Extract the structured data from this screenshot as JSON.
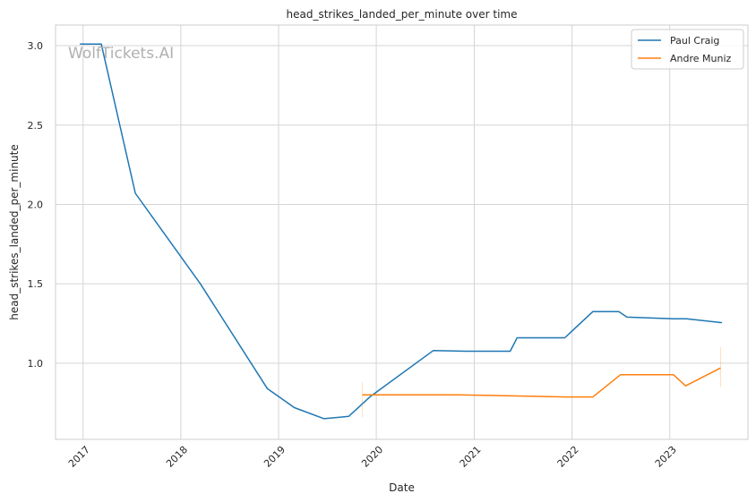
{
  "chart_data": {
    "type": "line",
    "title": "head_strikes_landed_per_minute over time",
    "xlabel": "Date",
    "ylabel": "head_strikes_landed_per_minute",
    "watermark": "WolfTickets.AI",
    "xlim": [
      "2016-09-20",
      "2023-10-20"
    ],
    "ylim": [
      0.52,
      3.13
    ],
    "x_ticks": [
      "2017",
      "2018",
      "2019",
      "2020",
      "2021",
      "2022",
      "2023"
    ],
    "y_ticks": [
      "1.0",
      "1.5",
      "2.0",
      "2.5",
      "3.0"
    ],
    "grid": true,
    "legend_position": "top-right",
    "series": [
      {
        "name": "Paul Craig",
        "color": "#1f77b4",
        "points": [
          [
            "2016-12-20",
            3.01
          ],
          [
            "2017-03-10",
            3.01
          ],
          [
            "2017-07-15",
            2.07
          ],
          [
            "2018-03-15",
            1.5
          ],
          [
            "2018-11-20",
            0.84
          ],
          [
            "2019-03-01",
            0.72
          ],
          [
            "2019-06-20",
            0.65
          ],
          [
            "2019-09-20",
            0.665
          ],
          [
            "2019-12-10",
            0.79
          ],
          [
            "2020-08-01",
            1.08
          ],
          [
            "2020-12-01",
            1.075
          ],
          [
            "2021-05-15",
            1.075
          ],
          [
            "2021-06-10",
            1.16
          ],
          [
            "2021-12-05",
            1.16
          ],
          [
            "2022-03-20",
            1.325
          ],
          [
            "2022-06-25",
            1.325
          ],
          [
            "2022-07-25",
            1.29
          ],
          [
            "2023-01-15",
            1.28
          ],
          [
            "2023-03-05",
            1.28
          ],
          [
            "2023-07-15",
            1.255
          ]
        ]
      },
      {
        "name": "Andre Muniz",
        "color": "#ff7f0e",
        "points": [
          [
            "2019-11-10",
            0.8
          ],
          [
            "2020-11-01",
            0.8
          ],
          [
            "2021-05-01",
            0.795
          ],
          [
            "2021-12-10",
            0.787
          ],
          [
            "2022-03-20",
            0.787
          ],
          [
            "2022-07-01",
            0.927
          ],
          [
            "2023-01-15",
            0.927
          ],
          [
            "2023-03-01",
            0.857
          ],
          [
            "2023-07-10",
            0.97
          ]
        ],
        "error_bars": [
          {
            "x": "2019-11-10",
            "low": 0.66,
            "high": 0.88
          },
          {
            "x": "2023-07-10",
            "low": 0.85,
            "high": 1.1
          }
        ]
      }
    ]
  }
}
